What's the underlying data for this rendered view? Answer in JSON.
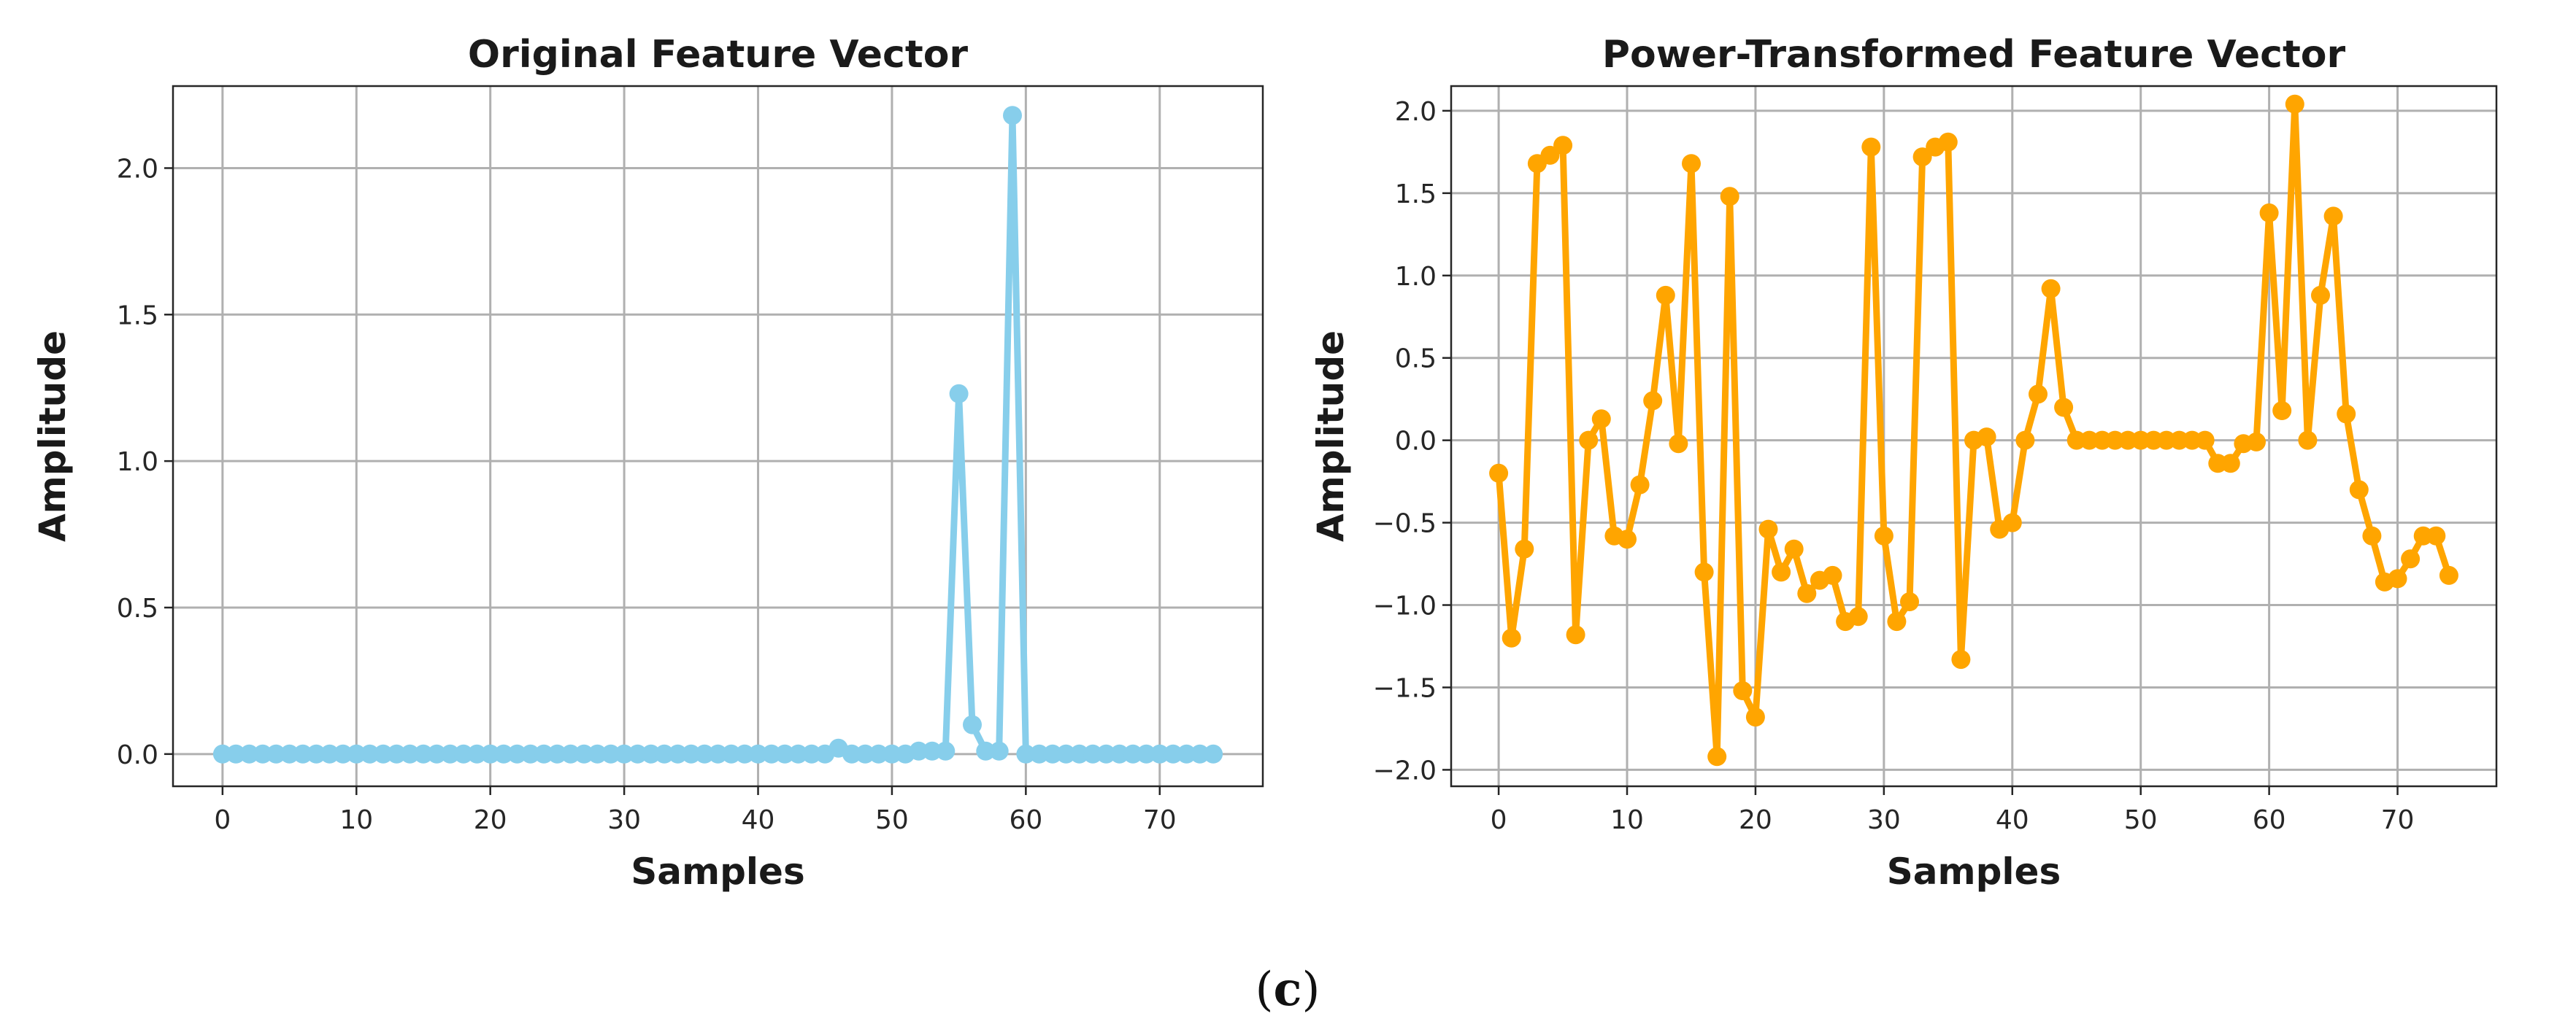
{
  "caption": {
    "open": "(",
    "letter": "c",
    "close": ")"
  },
  "chart_data": [
    {
      "type": "line",
      "title": "Original Feature Vector",
      "xlabel": "Samples",
      "ylabel": "Amplitude",
      "xlim": [
        -3.7,
        77.7
      ],
      "ylim": [
        -0.11,
        2.28
      ],
      "xticks": [
        0,
        10,
        20,
        30,
        40,
        50,
        60,
        70
      ],
      "xtick_labels": [
        "0",
        "10",
        "20",
        "30",
        "40",
        "50",
        "60",
        "70"
      ],
      "yticks": [
        0.0,
        0.5,
        1.0,
        1.5,
        2.0
      ],
      "ytick_labels": [
        "0.0",
        "0.5",
        "1.0",
        "1.5",
        "2.0"
      ],
      "grid": true,
      "marker": "circle",
      "color": "#87CEEB",
      "series": [
        {
          "name": "Original",
          "x": [
            0,
            1,
            2,
            3,
            4,
            5,
            6,
            7,
            8,
            9,
            10,
            11,
            12,
            13,
            14,
            15,
            16,
            17,
            18,
            19,
            20,
            21,
            22,
            23,
            24,
            25,
            26,
            27,
            28,
            29,
            30,
            31,
            32,
            33,
            34,
            35,
            36,
            37,
            38,
            39,
            40,
            41,
            42,
            43,
            44,
            45,
            46,
            47,
            48,
            49,
            50,
            51,
            52,
            53,
            54,
            55,
            56,
            57,
            58,
            59,
            60,
            61,
            62,
            63,
            64,
            65,
            66,
            67,
            68,
            69,
            70,
            71,
            72,
            73,
            74
          ],
          "values": [
            0,
            0,
            0,
            0,
            0,
            0,
            0,
            0,
            0,
            0,
            0,
            0,
            0,
            0,
            0,
            0,
            0,
            0,
            0,
            0,
            0,
            0,
            0,
            0,
            0,
            0,
            0,
            0,
            0,
            0,
            0,
            0,
            0,
            0,
            0,
            0,
            0,
            0,
            0,
            0,
            0,
            0,
            0,
            0,
            0,
            0,
            0.02,
            0,
            0,
            0,
            0,
            0,
            0.01,
            0.01,
            0.01,
            1.23,
            0.1,
            0.01,
            0.01,
            2.18,
            0,
            0,
            0,
            0,
            0,
            0,
            0,
            0,
            0,
            0,
            0,
            0,
            0,
            0,
            0
          ]
        }
      ]
    },
    {
      "type": "line",
      "title": "Power-Transformed Feature Vector",
      "xlabel": "Samples",
      "ylabel": "Amplitude",
      "xlim": [
        -3.7,
        77.7
      ],
      "ylim": [
        -2.1,
        2.15
      ],
      "xticks": [
        0,
        10,
        20,
        30,
        40,
        50,
        60,
        70
      ],
      "xtick_labels": [
        "0",
        "10",
        "20",
        "30",
        "40",
        "50",
        "60",
        "70"
      ],
      "yticks": [
        -2.0,
        -1.5,
        -1.0,
        -0.5,
        0.0,
        0.5,
        1.0,
        1.5,
        2.0
      ],
      "ytick_labels": [
        "−2.0",
        "−1.5",
        "−1.0",
        "−0.5",
        "0.0",
        "0.5",
        "1.0",
        "1.5",
        "2.0"
      ],
      "grid": true,
      "marker": "circle",
      "color": "#FFA500",
      "series": [
        {
          "name": "Power-Transformed",
          "x": [
            0,
            1,
            2,
            3,
            4,
            5,
            6,
            7,
            8,
            9,
            10,
            11,
            12,
            13,
            14,
            15,
            16,
            17,
            18,
            19,
            20,
            21,
            22,
            23,
            24,
            25,
            26,
            27,
            28,
            29,
            30,
            31,
            32,
            33,
            34,
            35,
            36,
            37,
            38,
            39,
            40,
            41,
            42,
            43,
            44,
            45,
            46,
            47,
            48,
            49,
            50,
            51,
            52,
            53,
            54,
            55,
            56,
            57,
            58,
            59,
            60,
            61,
            62,
            63,
            64,
            65,
            66,
            67,
            68,
            69,
            70,
            71,
            72,
            73,
            74
          ],
          "values": [
            -0.2,
            -1.2,
            -0.66,
            1.68,
            1.73,
            1.79,
            -1.18,
            0.0,
            0.13,
            -0.58,
            -0.6,
            -0.27,
            0.24,
            0.88,
            -0.02,
            1.68,
            -0.8,
            -1.92,
            1.48,
            -1.52,
            -1.68,
            -0.54,
            -0.8,
            -0.66,
            -0.93,
            -0.85,
            -0.82,
            -1.1,
            -1.07,
            1.78,
            -0.58,
            -1.1,
            -0.98,
            1.72,
            1.78,
            1.81,
            -1.33,
            0.0,
            0.02,
            -0.54,
            -0.5,
            0.0,
            0.28,
            0.92,
            0.2,
            0.0,
            0.0,
            0.0,
            0.0,
            0.0,
            0.0,
            0.0,
            0.0,
            0.0,
            0.0,
            0.0,
            -0.14,
            -0.14,
            -0.02,
            -0.01,
            1.38,
            0.18,
            2.04,
            0.0,
            0.88,
            1.36,
            0.16,
            -0.3,
            -0.58,
            -0.86,
            -0.84,
            -0.72,
            -0.58,
            -0.58,
            -0.82
          ]
        }
      ]
    }
  ]
}
